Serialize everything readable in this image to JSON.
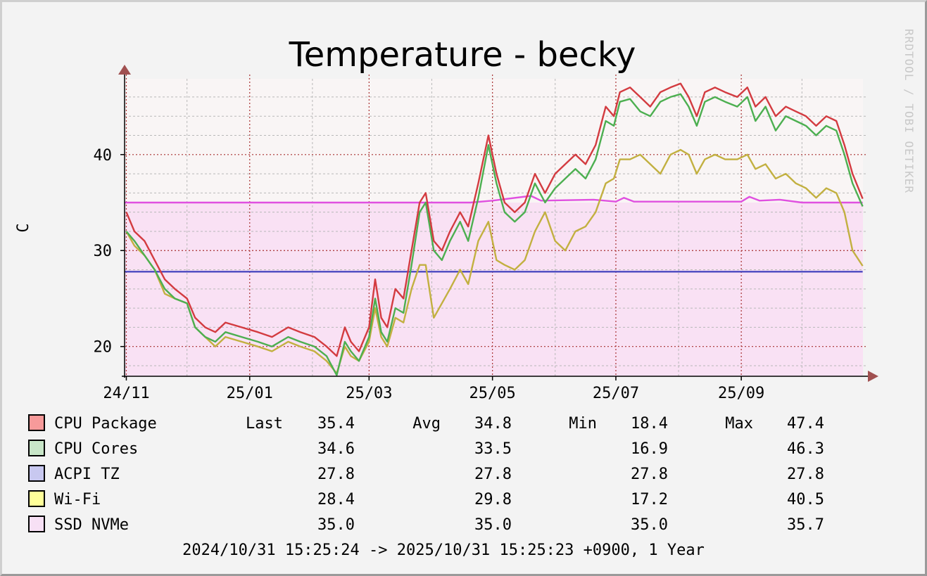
{
  "chart_data": {
    "type": "line",
    "title": "Temperature - becky",
    "ylabel": "C",
    "watermark": "RRDTOOL / TOBI OETIKER",
    "ylim": [
      16.9,
      47.9
    ],
    "y_ticks": [
      20,
      30,
      40
    ],
    "x_tick_labels": [
      "24/11",
      "25/01",
      "25/03",
      "25/05",
      "25/07",
      "25/09"
    ],
    "x_time_range": [
      "2024-10-31",
      "2025-10-31"
    ],
    "grid": true,
    "legend_position": "bottom",
    "colors": {
      "background": "#f3f3f3",
      "canvas_top": "#f9f5f5",
      "area_fill": "#f9e1f4",
      "major_grid": "#a83030",
      "minor_grid": "#b8b8b8",
      "axis": "#000000",
      "arrow": "#a05050"
    },
    "stat_headers": {
      "last": "Last",
      "avg": "Avg",
      "min": "Min",
      "max": "Max"
    },
    "series": [
      {
        "name": "CPU Package",
        "color": "#d33b40",
        "swatch": "#f79a9a",
        "stats": {
          "last": "35.4",
          "avg": "34.8",
          "min": "18.4",
          "max": "47.4"
        },
        "points": [
          [
            "2024-11-01",
            34
          ],
          [
            "2024-11-05",
            32
          ],
          [
            "2024-11-10",
            31
          ],
          [
            "2024-11-15",
            29
          ],
          [
            "2024-11-20",
            27
          ],
          [
            "2024-11-25",
            26
          ],
          [
            "2024-12-01",
            25
          ],
          [
            "2024-12-05",
            23
          ],
          [
            "2024-12-10",
            22
          ],
          [
            "2024-12-15",
            21.5
          ],
          [
            "2024-12-20",
            22.5
          ],
          [
            "2024-12-28",
            22
          ],
          [
            "2025-01-05",
            21.5
          ],
          [
            "2025-01-12",
            21
          ],
          [
            "2025-01-20",
            22
          ],
          [
            "2025-01-26",
            21.5
          ],
          [
            "2025-02-02",
            21
          ],
          [
            "2025-02-08",
            20
          ],
          [
            "2025-02-13",
            19
          ],
          [
            "2025-02-17",
            22
          ],
          [
            "2025-02-20",
            20.5
          ],
          [
            "2025-02-24",
            19.5
          ],
          [
            "2025-03-01",
            22
          ],
          [
            "2025-03-04",
            27
          ],
          [
            "2025-03-07",
            23
          ],
          [
            "2025-03-10",
            22
          ],
          [
            "2025-03-14",
            26
          ],
          [
            "2025-03-18",
            25
          ],
          [
            "2025-03-22",
            30
          ],
          [
            "2025-03-26",
            35
          ],
          [
            "2025-03-29",
            36
          ],
          [
            "2025-04-02",
            31
          ],
          [
            "2025-04-06",
            30
          ],
          [
            "2025-04-10",
            32
          ],
          [
            "2025-04-15",
            34
          ],
          [
            "2025-04-19",
            32.5
          ],
          [
            "2025-04-24",
            37
          ],
          [
            "2025-04-29",
            42
          ],
          [
            "2025-05-03",
            38
          ],
          [
            "2025-05-07",
            35
          ],
          [
            "2025-05-12",
            34
          ],
          [
            "2025-05-17",
            35
          ],
          [
            "2025-05-22",
            38
          ],
          [
            "2025-05-27",
            36
          ],
          [
            "2025-06-01",
            38
          ],
          [
            "2025-06-06",
            39
          ],
          [
            "2025-06-11",
            40
          ],
          [
            "2025-06-16",
            39
          ],
          [
            "2025-06-21",
            41
          ],
          [
            "2025-06-26",
            45
          ],
          [
            "2025-06-30",
            44
          ],
          [
            "2025-07-03",
            46.5
          ],
          [
            "2025-07-08",
            47
          ],
          [
            "2025-07-13",
            46
          ],
          [
            "2025-07-18",
            45
          ],
          [
            "2025-07-23",
            46.5
          ],
          [
            "2025-07-28",
            47
          ],
          [
            "2025-08-02",
            47.4
          ],
          [
            "2025-08-06",
            46
          ],
          [
            "2025-08-10",
            44
          ],
          [
            "2025-08-14",
            46.5
          ],
          [
            "2025-08-19",
            47
          ],
          [
            "2025-08-24",
            46.5
          ],
          [
            "2025-08-30",
            46
          ],
          [
            "2025-09-04",
            47
          ],
          [
            "2025-09-08",
            45
          ],
          [
            "2025-09-13",
            46
          ],
          [
            "2025-09-18",
            44
          ],
          [
            "2025-09-23",
            45
          ],
          [
            "2025-09-28",
            44.5
          ],
          [
            "2025-10-03",
            44
          ],
          [
            "2025-10-08",
            43
          ],
          [
            "2025-10-13",
            44
          ],
          [
            "2025-10-18",
            43.5
          ],
          [
            "2025-10-22",
            41
          ],
          [
            "2025-10-26",
            38
          ],
          [
            "2025-10-31",
            35.4
          ]
        ]
      },
      {
        "name": "CPU Cores",
        "color": "#4caf50",
        "swatch": "#c8e6c8",
        "stats": {
          "last": "34.6",
          "avg": "33.5",
          "min": "16.9",
          "max": "46.3"
        },
        "points": [
          [
            "2024-11-01",
            32
          ],
          [
            "2024-11-05",
            31
          ],
          [
            "2024-11-10",
            29.5
          ],
          [
            "2024-11-15",
            28
          ],
          [
            "2024-11-20",
            26
          ],
          [
            "2024-11-25",
            25
          ],
          [
            "2024-12-01",
            24.5
          ],
          [
            "2024-12-05",
            22
          ],
          [
            "2024-12-10",
            21
          ],
          [
            "2024-12-15",
            20.5
          ],
          [
            "2024-12-20",
            21.5
          ],
          [
            "2024-12-28",
            21
          ],
          [
            "2025-01-05",
            20.5
          ],
          [
            "2025-01-12",
            20
          ],
          [
            "2025-01-20",
            21
          ],
          [
            "2025-01-26",
            20.5
          ],
          [
            "2025-02-02",
            20
          ],
          [
            "2025-02-08",
            19
          ],
          [
            "2025-02-13",
            17
          ],
          [
            "2025-02-17",
            20.5
          ],
          [
            "2025-02-20",
            19.5
          ],
          [
            "2025-02-24",
            18.5
          ],
          [
            "2025-03-01",
            21
          ],
          [
            "2025-03-04",
            25
          ],
          [
            "2025-03-07",
            21.5
          ],
          [
            "2025-03-10",
            20.5
          ],
          [
            "2025-03-14",
            24
          ],
          [
            "2025-03-18",
            23.5
          ],
          [
            "2025-03-22",
            28.5
          ],
          [
            "2025-03-26",
            34
          ],
          [
            "2025-03-29",
            35
          ],
          [
            "2025-04-02",
            30
          ],
          [
            "2025-04-06",
            29
          ],
          [
            "2025-04-10",
            31
          ],
          [
            "2025-04-15",
            33
          ],
          [
            "2025-04-19",
            31
          ],
          [
            "2025-04-24",
            35.5
          ],
          [
            "2025-04-29",
            41
          ],
          [
            "2025-05-03",
            37
          ],
          [
            "2025-05-07",
            34
          ],
          [
            "2025-05-12",
            33
          ],
          [
            "2025-05-17",
            34
          ],
          [
            "2025-05-22",
            37
          ],
          [
            "2025-05-27",
            35
          ],
          [
            "2025-06-01",
            36.5
          ],
          [
            "2025-06-06",
            37.5
          ],
          [
            "2025-06-11",
            38.5
          ],
          [
            "2025-06-16",
            37.5
          ],
          [
            "2025-06-21",
            39.5
          ],
          [
            "2025-06-26",
            43.5
          ],
          [
            "2025-06-30",
            43
          ],
          [
            "2025-07-03",
            45.5
          ],
          [
            "2025-07-08",
            45.8
          ],
          [
            "2025-07-13",
            44.5
          ],
          [
            "2025-07-18",
            44
          ],
          [
            "2025-07-23",
            45.5
          ],
          [
            "2025-07-28",
            46
          ],
          [
            "2025-08-02",
            46.3
          ],
          [
            "2025-08-06",
            45
          ],
          [
            "2025-08-10",
            43
          ],
          [
            "2025-08-14",
            45.5
          ],
          [
            "2025-08-19",
            46
          ],
          [
            "2025-08-24",
            45.5
          ],
          [
            "2025-08-30",
            45
          ],
          [
            "2025-09-04",
            46
          ],
          [
            "2025-09-08",
            43.5
          ],
          [
            "2025-09-13",
            45
          ],
          [
            "2025-09-18",
            42.5
          ],
          [
            "2025-09-23",
            44
          ],
          [
            "2025-09-28",
            43.5
          ],
          [
            "2025-10-03",
            43
          ],
          [
            "2025-10-08",
            42
          ],
          [
            "2025-10-13",
            43
          ],
          [
            "2025-10-18",
            42.5
          ],
          [
            "2025-10-22",
            40
          ],
          [
            "2025-10-26",
            37
          ],
          [
            "2025-10-31",
            34.6
          ]
        ]
      },
      {
        "name": "ACPI TZ",
        "color": "#4a48c0",
        "swatch": "#c8c8f0",
        "stats": {
          "last": "27.8",
          "avg": "27.8",
          "min": "27.8",
          "max": "27.8"
        },
        "points": [
          [
            "2024-10-31",
            27.8
          ],
          [
            "2025-10-31",
            27.8
          ]
        ]
      },
      {
        "name": "Wi-Fi",
        "color": "#c2b040",
        "swatch": "#ffff99",
        "stats": {
          "last": "28.4",
          "avg": "29.8",
          "min": "17.2",
          "max": "40.5"
        },
        "points": [
          [
            "2024-11-01",
            32
          ],
          [
            "2024-11-05",
            30.5
          ],
          [
            "2024-11-10",
            29.5
          ],
          [
            "2024-11-15",
            28
          ],
          [
            "2024-11-20",
            25.5
          ],
          [
            "2024-11-25",
            25
          ],
          [
            "2024-12-01",
            24.5
          ],
          [
            "2024-12-05",
            22
          ],
          [
            "2024-12-10",
            21
          ],
          [
            "2024-12-15",
            20
          ],
          [
            "2024-12-20",
            21
          ],
          [
            "2024-12-28",
            20.5
          ],
          [
            "2025-01-05",
            20
          ],
          [
            "2025-01-12",
            19.5
          ],
          [
            "2025-01-20",
            20.5
          ],
          [
            "2025-01-26",
            20
          ],
          [
            "2025-02-02",
            19.5
          ],
          [
            "2025-02-08",
            18.5
          ],
          [
            "2025-02-13",
            17.2
          ],
          [
            "2025-02-17",
            20
          ],
          [
            "2025-02-20",
            19
          ],
          [
            "2025-02-24",
            18.5
          ],
          [
            "2025-03-01",
            20.5
          ],
          [
            "2025-03-04",
            24
          ],
          [
            "2025-03-07",
            21
          ],
          [
            "2025-03-10",
            20
          ],
          [
            "2025-03-14",
            23
          ],
          [
            "2025-03-18",
            22.5
          ],
          [
            "2025-03-22",
            26
          ],
          [
            "2025-03-26",
            28.5
          ],
          [
            "2025-03-29",
            28.5
          ],
          [
            "2025-04-02",
            23
          ],
          [
            "2025-04-06",
            24.5
          ],
          [
            "2025-04-10",
            26
          ],
          [
            "2025-04-15",
            28
          ],
          [
            "2025-04-19",
            26.5
          ],
          [
            "2025-04-24",
            31
          ],
          [
            "2025-04-29",
            33
          ],
          [
            "2025-05-03",
            29
          ],
          [
            "2025-05-07",
            28.5
          ],
          [
            "2025-05-12",
            28
          ],
          [
            "2025-05-17",
            29
          ],
          [
            "2025-05-22",
            32
          ],
          [
            "2025-05-27",
            34
          ],
          [
            "2025-06-01",
            31
          ],
          [
            "2025-06-06",
            30
          ],
          [
            "2025-06-11",
            32
          ],
          [
            "2025-06-16",
            32.5
          ],
          [
            "2025-06-21",
            34
          ],
          [
            "2025-06-26",
            37
          ],
          [
            "2025-06-30",
            37.5
          ],
          [
            "2025-07-03",
            39.5
          ],
          [
            "2025-07-08",
            39.5
          ],
          [
            "2025-07-13",
            40
          ],
          [
            "2025-07-18",
            39
          ],
          [
            "2025-07-23",
            38
          ],
          [
            "2025-07-28",
            40
          ],
          [
            "2025-08-02",
            40.5
          ],
          [
            "2025-08-06",
            40
          ],
          [
            "2025-08-10",
            38
          ],
          [
            "2025-08-14",
            39.5
          ],
          [
            "2025-08-19",
            40
          ],
          [
            "2025-08-24",
            39.5
          ],
          [
            "2025-08-30",
            39.5
          ],
          [
            "2025-09-04",
            40
          ],
          [
            "2025-09-08",
            38.5
          ],
          [
            "2025-09-13",
            39
          ],
          [
            "2025-09-18",
            37.5
          ],
          [
            "2025-09-23",
            38
          ],
          [
            "2025-09-28",
            37
          ],
          [
            "2025-10-03",
            36.5
          ],
          [
            "2025-10-08",
            35.5
          ],
          [
            "2025-10-13",
            36.5
          ],
          [
            "2025-10-18",
            36
          ],
          [
            "2025-10-22",
            34
          ],
          [
            "2025-10-26",
            30
          ],
          [
            "2025-10-31",
            28.4
          ]
        ]
      },
      {
        "name": "SSD NVMe",
        "color": "#e050e0",
        "swatch": "#f7e0f5",
        "stats": {
          "last": "35.0",
          "avg": "35.0",
          "min": "35.0",
          "max": "35.7"
        },
        "points": [
          [
            "2024-10-31",
            35
          ],
          [
            "2025-04-20",
            35
          ],
          [
            "2025-05-01",
            35.2
          ],
          [
            "2025-05-20",
            35.7
          ],
          [
            "2025-05-25",
            35.2
          ],
          [
            "2025-06-20",
            35.3
          ],
          [
            "2025-07-01",
            35.1
          ],
          [
            "2025-07-05",
            35.5
          ],
          [
            "2025-07-10",
            35.1
          ],
          [
            "2025-09-01",
            35.1
          ],
          [
            "2025-09-05",
            35.6
          ],
          [
            "2025-09-10",
            35.2
          ],
          [
            "2025-09-20",
            35.3
          ],
          [
            "2025-10-01",
            35.0
          ],
          [
            "2025-10-31",
            35.0
          ]
        ]
      }
    ],
    "time_range_text": "2024/10/31 15:25:24 -> 2025/10/31 15:25:23 +0900, 1 Year"
  }
}
